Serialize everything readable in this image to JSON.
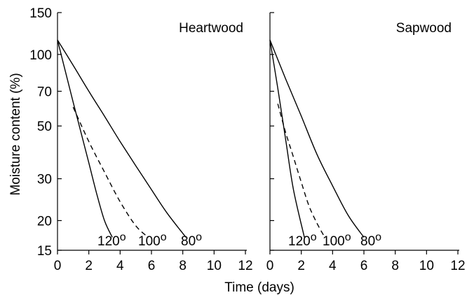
{
  "chart_data": [
    {
      "type": "line",
      "title": "Heartwood",
      "xlabel": "Time (days)",
      "ylabel": "Moisture content (%)",
      "xlim": [
        0,
        12
      ],
      "ylim": [
        15,
        150
      ],
      "yscale": "log",
      "xticks": [
        0,
        2,
        4,
        6,
        8,
        10,
        12
      ],
      "yticks": [
        15,
        20,
        30,
        50,
        70,
        100,
        150
      ],
      "grid": false,
      "series": [
        {
          "name": "120°",
          "label_main": "120",
          "label_sup": "o",
          "style": "solid",
          "x": [
            0,
            0.5,
            1,
            1.5,
            2,
            2.5,
            3,
            3.5
          ],
          "y": [
            115,
            85,
            63,
            47,
            35,
            26,
            20,
            17
          ]
        },
        {
          "name": "100°",
          "label_main": "100",
          "label_sup": "o",
          "style": "dashed",
          "x": [
            1,
            2,
            3,
            4,
            5,
            5.8
          ],
          "y": [
            60,
            43,
            32,
            24,
            19,
            17
          ]
        },
        {
          "name": "80°",
          "label_main": "80",
          "label_sup": "o",
          "style": "solid",
          "x": [
            0,
            1,
            2,
            3,
            4,
            5,
            6,
            7,
            8.2
          ],
          "y": [
            115,
            90,
            70,
            55,
            43,
            34,
            27,
            21.5,
            17
          ]
        }
      ]
    },
    {
      "type": "line",
      "title": "Sapwood",
      "xlabel": "Time (days)",
      "ylabel": "",
      "xlim": [
        0,
        12
      ],
      "ylim": [
        15,
        150
      ],
      "yscale": "log",
      "xticks": [
        0,
        2,
        4,
        6,
        8,
        10,
        12
      ],
      "yticks": [
        15,
        20,
        30,
        50,
        70,
        100,
        150
      ],
      "grid": false,
      "series": [
        {
          "name": "120°",
          "label_main": "120",
          "label_sup": "o",
          "style": "solid",
          "x": [
            0,
            0.5,
            1,
            1.5,
            2.2
          ],
          "y": [
            115,
            72,
            44,
            27,
            17
          ]
        },
        {
          "name": "100°",
          "label_main": "100",
          "label_sup": "o",
          "style": "dashed",
          "x": [
            0.5,
            1,
            1.5,
            2,
            2.5,
            3,
            3.5
          ],
          "y": [
            62,
            47,
            37,
            29,
            23,
            19.5,
            17
          ]
        },
        {
          "name": "80°",
          "label_main": "80",
          "label_sup": "o",
          "style": "solid",
          "x": [
            0,
            1,
            2,
            3,
            4,
            5,
            6
          ],
          "y": [
            115,
            79,
            55,
            38,
            28,
            21,
            17
          ]
        }
      ]
    }
  ]
}
